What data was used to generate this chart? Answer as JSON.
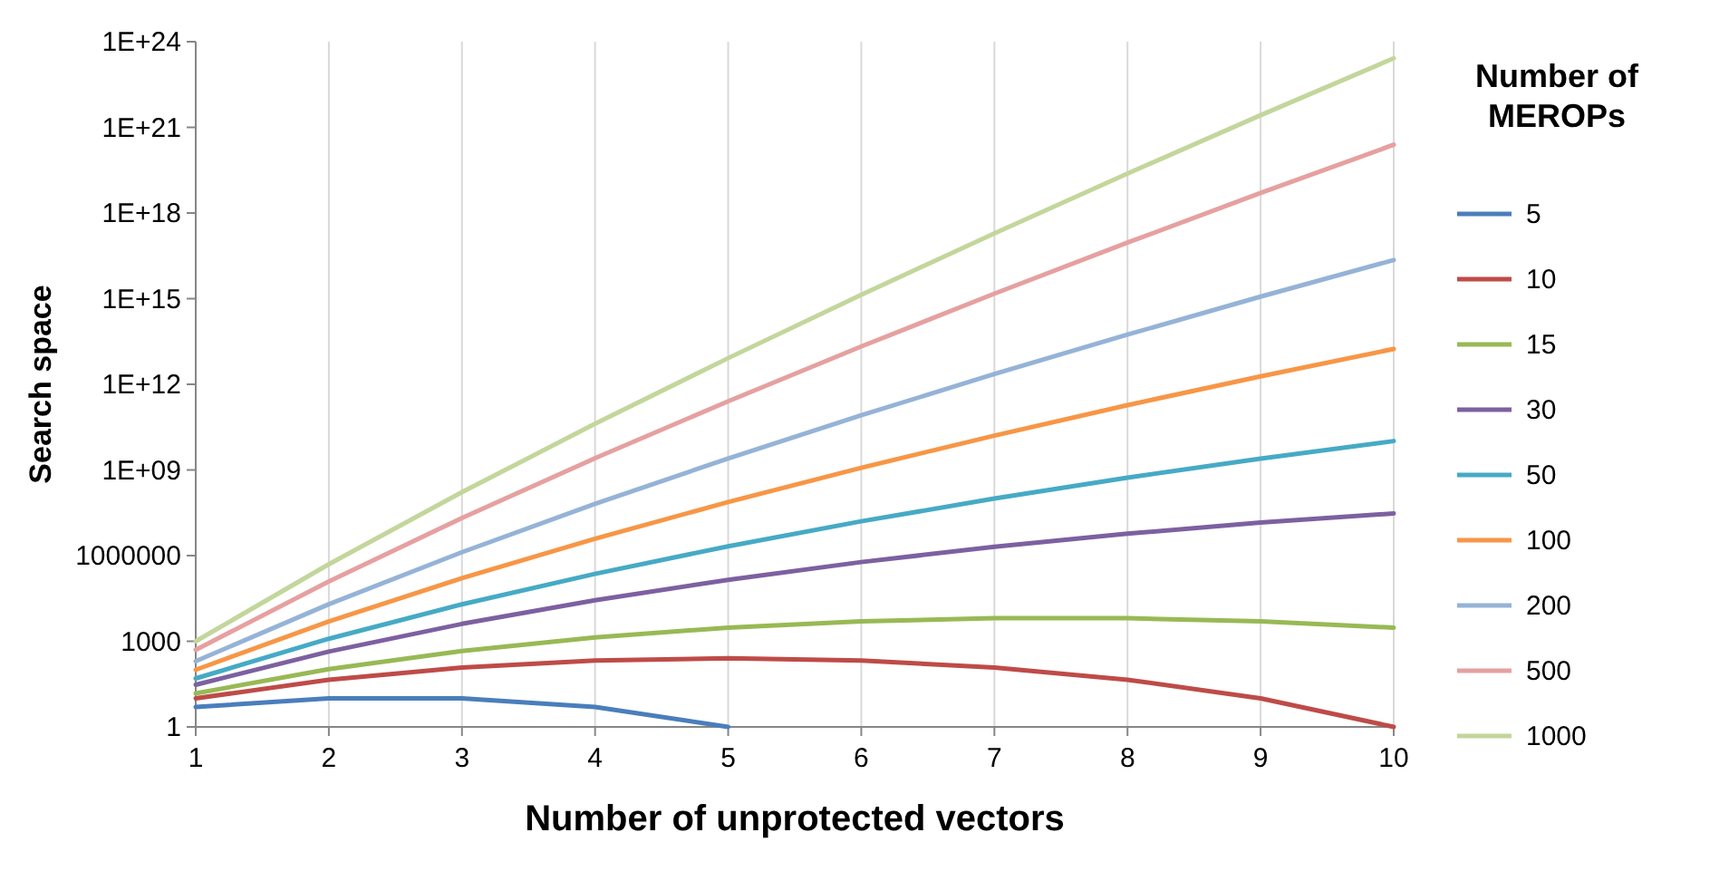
{
  "chart_data": {
    "type": "line",
    "xlabel": "Number of unprotected vectors",
    "ylabel": "Search space",
    "legend_title": "Number of MEROPs",
    "x": [
      1,
      2,
      3,
      4,
      5,
      6,
      7,
      8,
      9,
      10
    ],
    "xlim": [
      1,
      10
    ],
    "xticks": [
      1,
      2,
      3,
      4,
      5,
      6,
      7,
      8,
      9,
      10
    ],
    "log": "y",
    "ylim": [
      1,
      1e+24
    ],
    "yticks": [
      1,
      1000,
      1000000,
      {
        "value": 1000000000.0,
        "label": "1E+09"
      },
      {
        "value": 1000000000000.0,
        "label": "1E+12"
      },
      {
        "value": 1000000000000000.0,
        "label": "1E+15"
      },
      {
        "value": 1e+18,
        "label": "1E+18"
      },
      {
        "value": 1e+21,
        "label": "1E+21"
      },
      {
        "value": 1e+24,
        "label": "1E+24"
      }
    ],
    "grid": "x",
    "legend": "right",
    "marker": "none",
    "line_style": "solid",
    "series": [
      {
        "name": "5",
        "color": "#4a7ebb",
        "values": [
          5,
          10,
          10,
          5,
          1,
          null,
          null,
          null,
          null,
          null
        ]
      },
      {
        "name": "10",
        "color": "#be4b48",
        "values": [
          10,
          45,
          120,
          210,
          252,
          210,
          120,
          45,
          10,
          1
        ]
      },
      {
        "name": "15",
        "color": "#98b954",
        "values": [
          15,
          105,
          455,
          1365,
          3003,
          5005,
          6435,
          6435,
          5005,
          3003
        ]
      },
      {
        "name": "30",
        "color": "#7d60a0",
        "values": [
          30,
          435,
          4060,
          27405,
          142506,
          593775,
          2035800,
          5852925,
          14307150,
          30045015
        ]
      },
      {
        "name": "50",
        "color": "#46aac5",
        "values": [
          50,
          1225,
          19600,
          230300,
          2118760,
          15890700,
          99884400,
          536878650,
          2505433700,
          10272278170
        ]
      },
      {
        "name": "100",
        "color": "#f79646",
        "values": [
          100,
          4950,
          161700,
          3921225,
          75287520,
          1192052400,
          16007560800,
          186087894300,
          1902231808400,
          17310309456440
        ]
      },
      {
        "name": "200",
        "color": "#95b3d7",
        "values": [
          200,
          19900,
          1313400,
          64684950,
          2535650040,
          82408626300,
          2284000000000.0,
          55100000000000.0,
          1180000000000000.0,
          2.25e+16
        ]
      },
      {
        "name": "500",
        "color": "#e6a0a0",
        "values": [
          500,
          124750,
          20708500,
          2570000000.0,
          255000000000.0,
          21100000000000.0,
          1490000000000000.0,
          9.16e+16,
          5.01e+18,
          2.46e+20
        ]
      },
      {
        "name": "1000",
        "color": "#c3d69b",
        "values": [
          1000,
          499500,
          166167000,
          41400000000.0,
          8250000000000.0,
          1370000000000000.0,
          1.94e+17,
          2.41e+19,
          2.66e+21,
          2.63e+23
        ]
      }
    ]
  }
}
